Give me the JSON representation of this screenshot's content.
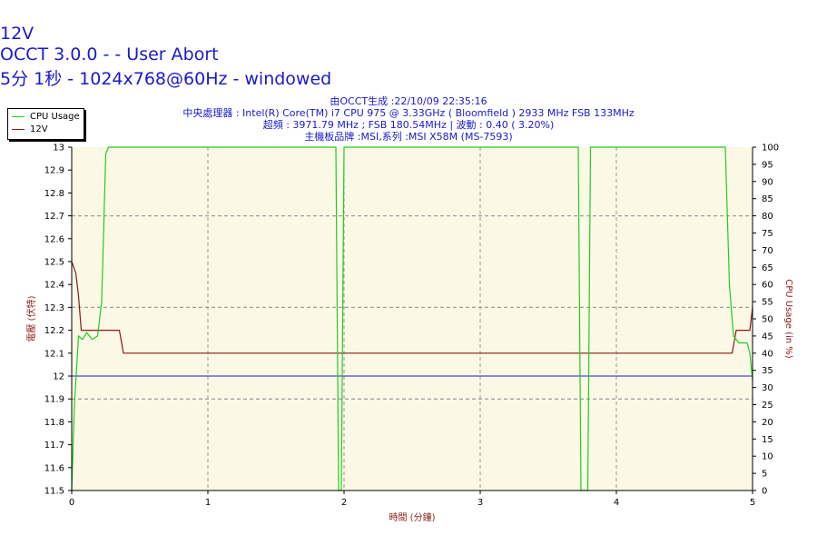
{
  "titles": {
    "line1": "12V",
    "line2": "OCCT 3.0.0 -  - User Abort",
    "line3": "5分 1秒 - 1024x768@60Hz - windowed"
  },
  "info": [
    "由OCCT生成 :22/10/09 22:35:16",
    "中央處理器 : Intel(R) Core(TM) i7 CPU 975 @ 3.33GHz ( Bloomfield ) 2933 MHz FSB 133MHz",
    "超頻 : 3971.79 MHz ; FSB 180.54MHz | 波動 : 0.40 ( 3.20%)",
    "主機板品牌 :MSI,系列 :MSI X58M (MS-7593)"
  ],
  "legend": [
    {
      "label": "CPU Usage",
      "color": "#22cc22"
    },
    {
      "label": "12V",
      "color": "#8b1a1a"
    }
  ],
  "colors": {
    "plot_bg": "#fbf8e6",
    "grid": "#9a9a9a",
    "cpu": "#22cc22",
    "voltage": "#8b1a1a",
    "reference": "#1a1acc",
    "title": "#1a1acc",
    "axis_label": "#8b1a1a"
  },
  "chart_data": {
    "type": "line",
    "xlabel": "時間 (分鐘)",
    "ylabel_left": "電壓 (伏特)",
    "ylabel_right": "CPU Usage (in %)",
    "xlim": [
      0,
      5
    ],
    "ylim_left": [
      11.5,
      13
    ],
    "ylim_right": [
      0,
      100
    ],
    "x_ticks": [
      "0",
      "1",
      "2",
      "3",
      "4",
      "5"
    ],
    "y_left_ticks": [
      "11.5",
      "11.6",
      "11.7",
      "11.8",
      "11.9",
      "12",
      "12.1",
      "12.2",
      "12.3",
      "12.4",
      "12.5",
      "12.6",
      "12.7",
      "12.8",
      "12.9",
      "13"
    ],
    "y_right_ticks": [
      "0",
      "5",
      "10",
      "15",
      "20",
      "25",
      "30",
      "35",
      "40",
      "45",
      "50",
      "55",
      "60",
      "65",
      "70",
      "75",
      "80",
      "85",
      "90",
      "95",
      "100"
    ],
    "grid": true,
    "legend_position": "top-left",
    "reference_line": 12.0,
    "series": [
      {
        "name": "12V",
        "axis": "left",
        "points": [
          [
            0,
            12.5
          ],
          [
            0.03,
            12.45
          ],
          [
            0.05,
            12.35
          ],
          [
            0.07,
            12.2
          ],
          [
            0.35,
            12.2
          ],
          [
            0.38,
            12.1
          ],
          [
            4.85,
            12.1
          ],
          [
            4.88,
            12.2
          ],
          [
            4.98,
            12.2
          ],
          [
            5.0,
            12.3
          ]
        ]
      },
      {
        "name": "CPU Usage",
        "axis": "right",
        "points": [
          [
            0,
            0
          ],
          [
            0.02,
            25
          ],
          [
            0.05,
            45
          ],
          [
            0.08,
            44
          ],
          [
            0.11,
            46
          ],
          [
            0.15,
            44
          ],
          [
            0.19,
            45
          ],
          [
            0.22,
            55
          ],
          [
            0.25,
            98
          ],
          [
            0.27,
            100
          ],
          [
            1.94,
            100
          ],
          [
            1.96,
            0
          ],
          [
            1.98,
            0
          ],
          [
            2.0,
            100
          ],
          [
            3.72,
            100
          ],
          [
            3.74,
            0
          ],
          [
            3.79,
            0
          ],
          [
            3.81,
            100
          ],
          [
            4.8,
            100
          ],
          [
            4.83,
            60
          ],
          [
            4.86,
            45
          ],
          [
            4.9,
            43
          ],
          [
            4.96,
            43
          ],
          [
            4.98,
            40
          ],
          [
            5.0,
            32
          ]
        ]
      }
    ]
  }
}
